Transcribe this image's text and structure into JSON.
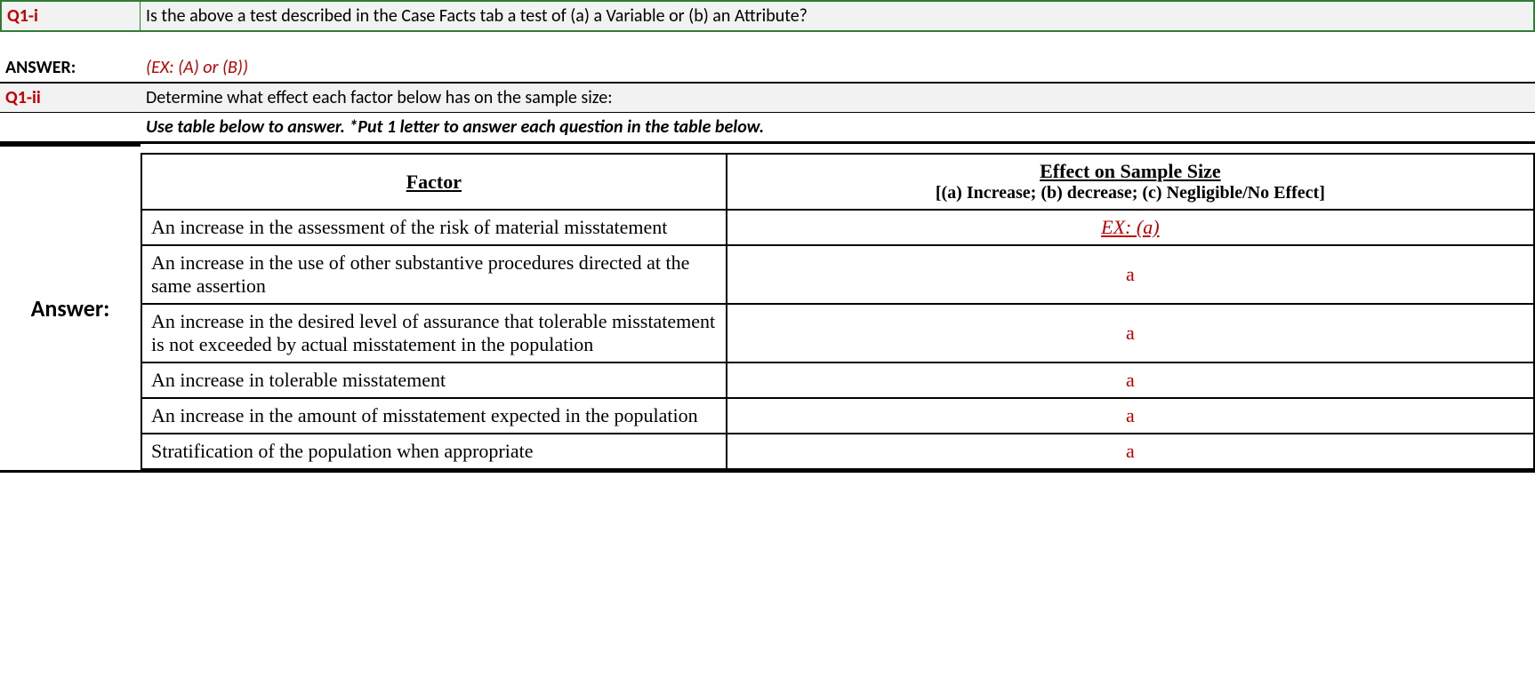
{
  "q1i": {
    "label": "Q1-i",
    "text": "Is the above a test described in the Case Facts tab a test of (a) a Variable or (b) an Attribute?"
  },
  "answer1": {
    "label": "ANSWER:",
    "text": "(EX: (A) or (B))"
  },
  "q1ii": {
    "label": "Q1-ii",
    "text": "Determine what effect each factor below has on the sample size:"
  },
  "instruction": "Use table below to answer. *Put 1 letter to answer each question in the table below.",
  "tableAnswerLabel": "Answer:",
  "colors": {
    "questionLabel": "#c00000",
    "answerText": "#c00000",
    "headerBg": "#f2f2f2",
    "greenBorder": "#2e7d32"
  },
  "table": {
    "headers": {
      "factor": "Factor",
      "effect_line1": "Effect on Sample Size",
      "effect_line2": "[(a) Increase; (b) decrease; (c) Negligible/No Effect]"
    },
    "rows": [
      {
        "factor": "An increase in the assessment of the risk of material misstatement",
        "effect": "EX: (a)",
        "is_example": true
      },
      {
        "factor": "An increase in the use of other substantive procedures directed at the same assertion",
        "effect": "a",
        "is_example": false
      },
      {
        "factor": "An increase in the desired level of assurance that tolerable misstatement is not exceeded by actual misstatement in the population",
        "effect": "a",
        "is_example": false
      },
      {
        "factor": "An increase in tolerable misstatement",
        "effect": "a",
        "is_example": false
      },
      {
        "factor": "An increase in the amount of misstatement expected in the population",
        "effect": "a",
        "is_example": false
      },
      {
        "factor": "Stratification of the population when appropriate",
        "effect": "a",
        "is_example": false
      }
    ]
  }
}
